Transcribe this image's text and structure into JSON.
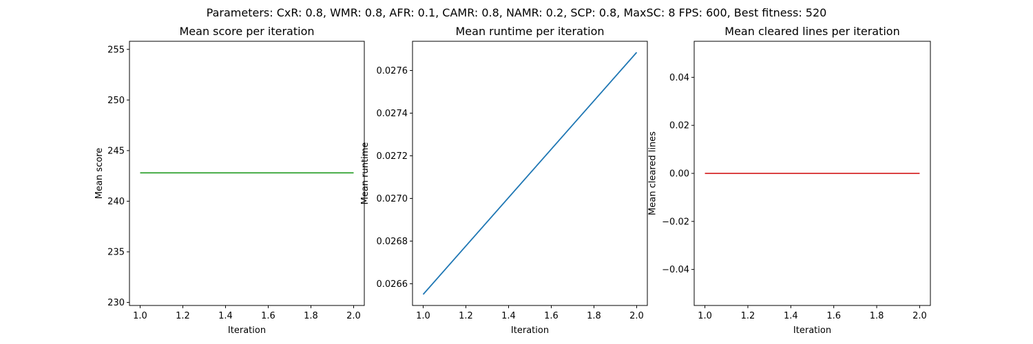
{
  "suptitle": "Parameters: CxR: 0.8, WMR: 0.8, AFR: 0.1, CAMR: 0.8, NAMR: 0.2, SCP: 0.8, MaxSC: 8  FPS: 600, Best fitness: 520",
  "chart_data": [
    {
      "type": "line",
      "title": "Mean score per iteration",
      "xlabel": "Iteration",
      "ylabel": "Mean score",
      "xlim": [
        0.95,
        2.05
      ],
      "ylim": [
        229.7,
        255.8
      ],
      "xticks": [
        1.0,
        1.2,
        1.4,
        1.6,
        1.8,
        2.0
      ],
      "xtick_labels": [
        "1.0",
        "1.2",
        "1.4",
        "1.6",
        "1.8",
        "2.0"
      ],
      "yticks": [
        230,
        235,
        240,
        245,
        250,
        255
      ],
      "ytick_labels": [
        "230",
        "235",
        "240",
        "245",
        "250",
        "255"
      ],
      "grid": false,
      "series": [
        {
          "color": "#2ca02c",
          "x": [
            1.0,
            2.0
          ],
          "y": [
            242.8,
            242.8
          ]
        }
      ]
    },
    {
      "type": "line",
      "title": "Mean runtime per iteration",
      "xlabel": "Iteration",
      "ylabel": "Mean runtime",
      "xlim": [
        0.95,
        2.05
      ],
      "ylim": [
        0.026498,
        0.027737
      ],
      "xticks": [
        1.0,
        1.2,
        1.4,
        1.6,
        1.8,
        2.0
      ],
      "xtick_labels": [
        "1.0",
        "1.2",
        "1.4",
        "1.6",
        "1.8",
        "2.0"
      ],
      "yticks": [
        0.0266,
        0.0268,
        0.027,
        0.0272,
        0.0274,
        0.0276
      ],
      "ytick_labels": [
        "0.0266",
        "0.0268",
        "0.0270",
        "0.0272",
        "0.0274",
        "0.0276"
      ],
      "grid": false,
      "series": [
        {
          "color": "#1f77b4",
          "x": [
            1.0,
            2.0
          ],
          "y": [
            0.02655,
            0.027685
          ]
        }
      ]
    },
    {
      "type": "line",
      "title": "Mean cleared lines per iteration",
      "xlabel": "Iteration",
      "ylabel": "Mean cleared lines",
      "xlim": [
        0.95,
        2.05
      ],
      "ylim": [
        -0.055,
        0.055
      ],
      "xticks": [
        1.0,
        1.2,
        1.4,
        1.6,
        1.8,
        2.0
      ],
      "xtick_labels": [
        "1.0",
        "1.2",
        "1.4",
        "1.6",
        "1.8",
        "2.0"
      ],
      "yticks": [
        -0.04,
        -0.02,
        0.0,
        0.02,
        0.04
      ],
      "ytick_labels": [
        "−0.04",
        "−0.02",
        "0.00",
        "0.02",
        "0.04"
      ],
      "grid": false,
      "series": [
        {
          "color": "#d62728",
          "x": [
            1.0,
            2.0
          ],
          "y": [
            0.0,
            0.0
          ]
        }
      ]
    }
  ]
}
